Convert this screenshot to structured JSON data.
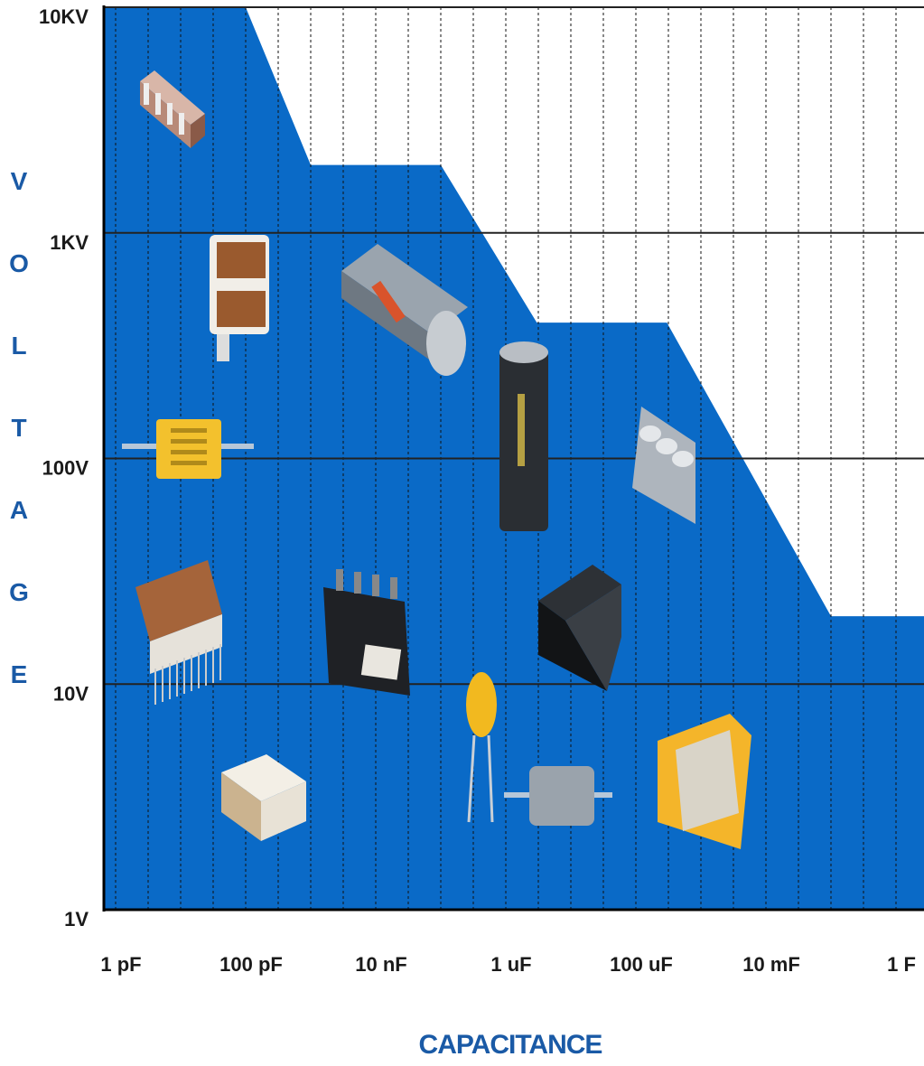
{
  "chart_data": {
    "type": "area",
    "title": "",
    "xlabel": "CAPACITANCE",
    "ylabel": "VOLTAGE",
    "x_scale": "log",
    "y_scale": "log",
    "x_ticks": [
      "1 pF",
      "100 pF",
      "10 nF",
      "1 uF",
      "100 uF",
      "10 mF",
      "1 F"
    ],
    "y_ticks": [
      "10KV",
      "1KV",
      "100V",
      "10V",
      "1V"
    ],
    "xlim": [
      "1 pF",
      "1 F"
    ],
    "ylim": [
      "1V",
      "10KV"
    ],
    "grid": true,
    "fill_color": "#0a6ac7",
    "series": [
      {
        "x": [
          "1 pF",
          "100 pF",
          "1 nF",
          "100 nF",
          "3 uF",
          "300 uF",
          "100 mF",
          "1 F"
        ],
        "y": [
          10000,
          10000,
          2000,
          2000,
          400,
          400,
          20,
          20
        ]
      }
    ],
    "component_icons": [
      "chip-array-capacitor-icon",
      "high-voltage-chip-capacitor-icon",
      "ceramic-tube-capacitor-icon",
      "axial-film-capacitor-icon",
      "aluminum-electrolytic-capacitor-icon",
      "snap-in-capacitor-bank-icon",
      "ceramic-stacked-capacitor-icon",
      "film-power-capacitor-icon",
      "block-capacitor-icon",
      "tantalum-dipped-capacitor-icon",
      "axial-electrolytic-capacitor-icon",
      "supercapacitor-module-icon",
      "smd-chip-capacitor-icon"
    ]
  }
}
